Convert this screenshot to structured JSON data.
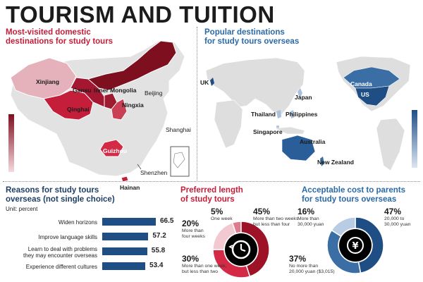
{
  "title": "TOURISM AND TUITION",
  "colors": {
    "red_dark": "#7d0f1f",
    "red": "#c41e3a",
    "red_light": "#e5b1ba",
    "blue_dark": "#1f4e84",
    "blue_light": "#c3d4e6",
    "grey": "#dedede"
  },
  "domestic": {
    "heading_line1": "Most-visited domestic",
    "heading_line2": "destinations for study tours",
    "regions": [
      "Xinjiang",
      "Gansu",
      "Inner Mongolia",
      "Qinghai",
      "Ningxia",
      "Beijing",
      "Shanghai",
      "Guizhou",
      "Shenzhen",
      "Hainan"
    ]
  },
  "overseas": {
    "heading_line1": "Popular destinations",
    "heading_line2": "for study tours overseas",
    "countries": [
      "UK",
      "Canada",
      "US",
      "Japan",
      "Thailand",
      "Philippines",
      "Singapore",
      "Australia",
      "New Zealand"
    ]
  },
  "chart_data": [
    {
      "type": "bar",
      "title": "Reasons for study tours overseas (not single choice)",
      "title_line1": "Reasons for study tours",
      "title_line2": "overseas (not single choice)",
      "unit": "Unit: percent",
      "categories": [
        "Widen horizons",
        "Improve language skills",
        "Learn to deal with problems they may encounter overseas",
        "Experience different cultures"
      ],
      "category_lines": [
        [
          "Widen horizons"
        ],
        [
          "Improve language skills"
        ],
        [
          "Learn to deal with problems",
          "they may encounter overseas"
        ],
        [
          "Experience different cultures"
        ]
      ],
      "values": [
        66.5,
        57.2,
        55.8,
        53.4
      ],
      "value_labels": [
        "66.5",
        "57.2",
        "55.8",
        "53.4"
      ]
    },
    {
      "type": "pie",
      "title": "Preferred length of study tours",
      "title_line1": "Preferred length",
      "title_line2": "of study tours",
      "slices": [
        {
          "label": "One week",
          "value": 5,
          "pct_label": "5%",
          "lines": [
            "One week"
          ]
        },
        {
          "label": "More than two weeks but less than four",
          "value": 45,
          "pct_label": "45%",
          "lines": [
            "More than two weeks",
            "but less than four"
          ]
        },
        {
          "label": "More than one week, but less than two",
          "value": 30,
          "pct_label": "30%",
          "lines": [
            "More than one week,",
            "but less than two"
          ]
        },
        {
          "label": "More than four weeks",
          "value": 20,
          "pct_label": "20%",
          "lines": [
            "More than",
            "four weeks"
          ]
        }
      ]
    },
    {
      "type": "pie",
      "title": "Acceptable cost to parents for study tours overseas",
      "title_line1": "Acceptable cost to parents",
      "title_line2": "for study tours overseas",
      "slices": [
        {
          "label": "20,000 to 30,000 yuan",
          "value": 47,
          "pct_label": "47%",
          "lines": [
            "20,000 to",
            "30,000 yuan"
          ]
        },
        {
          "label": "No more than 20,000 yuan ($3,015)",
          "value": 37,
          "pct_label": "37%",
          "lines": [
            "No more than",
            "20,000 yuan ($3,015)"
          ]
        },
        {
          "label": "More than 30,000 yuan",
          "value": 16,
          "pct_label": "16%",
          "lines": [
            "More than",
            "30,000 yuan"
          ]
        }
      ]
    }
  ]
}
